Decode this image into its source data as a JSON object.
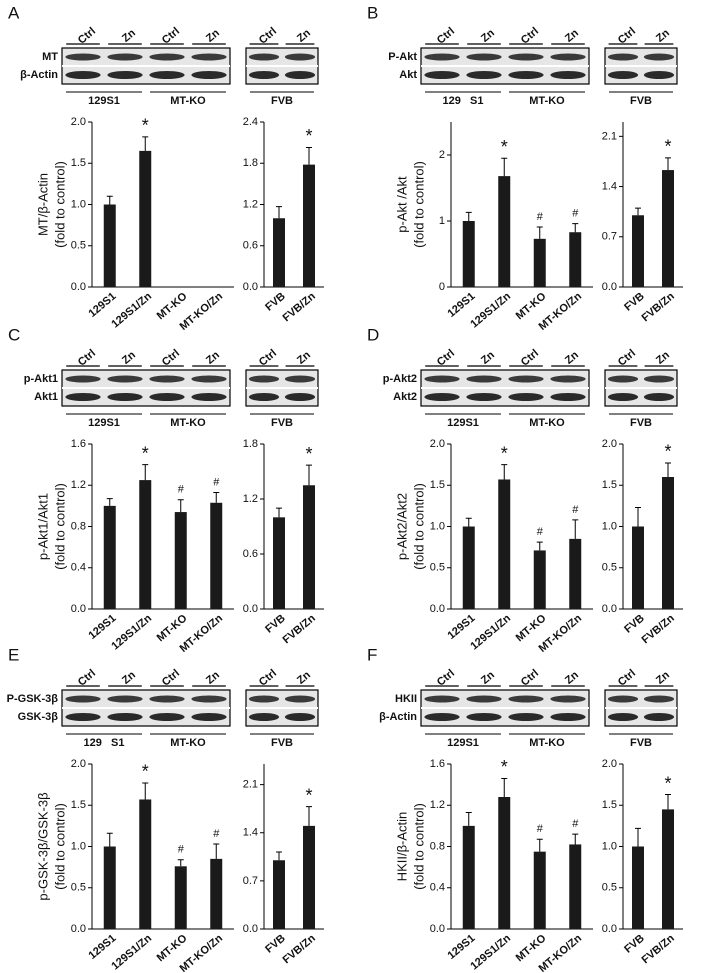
{
  "panels": [
    {
      "letter": "A",
      "blot_left": {
        "lanes": [
          "Ctrl",
          "Zn",
          "Ctrl",
          "Zn"
        ],
        "rows": [
          "MT",
          "β-Actin"
        ],
        "groups": [
          "129S1",
          "MT-KO"
        ]
      },
      "blot_right": {
        "lanes": [
          "Ctrl",
          "Zn"
        ],
        "groups": [
          "FVB"
        ]
      }
    },
    {
      "letter": "B",
      "blot_left": {
        "lanes": [
          "Ctrl",
          "Zn",
          "Ctrl",
          "Zn"
        ],
        "rows": [
          "P-Akt",
          "Akt"
        ],
        "groups": [
          "129   S1",
          "MT-KO"
        ]
      },
      "blot_right": {
        "lanes": [
          "Ctrl",
          "Zn"
        ],
        "groups": [
          "FVB"
        ]
      }
    },
    {
      "letter": "C",
      "blot_left": {
        "lanes": [
          "Ctrl",
          "Zn",
          "Ctrl",
          "Zn"
        ],
        "rows": [
          "p-Akt1",
          "Akt1"
        ],
        "groups": [
          "129S1",
          "MT-KO"
        ]
      },
      "blot_right": {
        "lanes": [
          "Ctrl",
          "Zn"
        ],
        "groups": [
          "FVB"
        ]
      }
    },
    {
      "letter": "D",
      "blot_left": {
        "lanes": [
          "Ctrl",
          "Zn",
          "Ctrl",
          "Zn"
        ],
        "rows": [
          "p-Akt2",
          "Akt2"
        ],
        "groups": [
          "129S1",
          "MT-KO"
        ]
      },
      "blot_right": {
        "lanes": [
          "Ctrl",
          "Zn"
        ],
        "groups": [
          "FVB"
        ]
      }
    },
    {
      "letter": "E",
      "blot_left": {
        "lanes": [
          "Ctrl",
          "Zn",
          "Ctrl",
          "Zn"
        ],
        "rows": [
          "P-GSK-3β",
          "GSK-3β"
        ],
        "groups": [
          "129   S1",
          "MT-KO"
        ]
      },
      "blot_right": {
        "lanes": [
          "Ctrl",
          "Zn"
        ],
        "groups": [
          "FVB"
        ]
      }
    },
    {
      "letter": "F",
      "blot_left": {
        "lanes": [
          "Ctrl",
          "Zn",
          "Ctrl",
          "Zn"
        ],
        "rows": [
          "HKII",
          "β-Actin"
        ],
        "groups": [
          "129S1",
          "MT-KO"
        ]
      },
      "blot_right": {
        "lanes": [
          "Ctrl",
          "Zn"
        ],
        "groups": [
          "FVB"
        ]
      }
    }
  ],
  "chart_data": [
    {
      "type": "bar",
      "ylabel": [
        "MT/β-Actin",
        "(fold to control)"
      ],
      "categories": [
        "129S1",
        "129S1/Zn",
        "MT-KO",
        "MT-KO/Zn"
      ],
      "values": [
        1.0,
        1.65,
        0,
        0
      ],
      "errors": [
        0.1,
        0.17,
        0,
        0
      ],
      "markers": [
        null,
        "*",
        null,
        null
      ],
      "color": "#1a1a1a",
      "ylim": [
        0,
        2.0
      ],
      "yticks": [
        {
          "value": 0,
          "label": "0.0"
        },
        {
          "value": 0.5,
          "label": "0.5"
        },
        {
          "value": 1,
          "label": "1.0"
        },
        {
          "value": 1.5,
          "label": "1.5"
        },
        {
          "value": 2,
          "label": "2.0"
        }
      ]
    },
    {
      "type": "bar",
      "categories": [
        "FVB",
        "FVB/Zn"
      ],
      "values": [
        1.0,
        1.78
      ],
      "errors": [
        0.17,
        0.25
      ],
      "markers": [
        null,
        "*"
      ],
      "color": "#1a1a1a",
      "ylim": [
        0,
        2.4
      ],
      "yticks": [
        {
          "value": 0,
          "label": "0.0"
        },
        {
          "value": 0.6,
          "label": "0.6"
        },
        {
          "value": 1.2,
          "label": "1.2"
        },
        {
          "value": 1.8,
          "label": "1.8"
        },
        {
          "value": 2.4,
          "label": "2.4"
        }
      ]
    },
    {
      "type": "bar",
      "ylabel": [
        "p-Akt /Akt",
        "(fold to control)"
      ],
      "categories": [
        "129S1",
        "129S1/Zn",
        "MT-KO",
        "MT-KO/Zn"
      ],
      "values": [
        1.0,
        1.68,
        0.73,
        0.83
      ],
      "errors": [
        0.13,
        0.27,
        0.18,
        0.13
      ],
      "markers": [
        null,
        "*",
        "#",
        "#"
      ],
      "color": "#1a1a1a",
      "ylim": [
        0,
        2.5
      ],
      "yticks": [
        0,
        1,
        2
      ]
    },
    {
      "type": "bar",
      "categories": [
        "FVB",
        "FVB/Zn"
      ],
      "values": [
        1.0,
        1.63
      ],
      "errors": [
        0.1,
        0.17
      ],
      "markers": [
        null,
        "*"
      ],
      "color": "#1a1a1a",
      "ylim": [
        0,
        2.3
      ],
      "yticks": [
        {
          "value": 0,
          "label": "0.0"
        },
        {
          "value": 0.7,
          "label": "0.7"
        },
        {
          "value": 1.4,
          "label": "1.4"
        },
        {
          "value": 2.1,
          "label": "2.1"
        }
      ]
    },
    {
      "type": "bar",
      "ylabel": [
        "p-Akt1/Akt1",
        "(fold to control)"
      ],
      "categories": [
        "129S1",
        "129S1/Zn",
        "MT-KO",
        "MT-KO/Zn"
      ],
      "values": [
        1.0,
        1.25,
        0.94,
        1.03
      ],
      "errors": [
        0.07,
        0.15,
        0.12,
        0.1
      ],
      "markers": [
        null,
        "*",
        "#",
        "#"
      ],
      "color": "#1a1a1a",
      "ylim": [
        0,
        1.6
      ],
      "yticks": [
        {
          "value": 0,
          "label": "0.0"
        },
        {
          "value": 0.4,
          "label": "0.4"
        },
        {
          "value": 0.8,
          "label": "0.8"
        },
        {
          "value": 1.2,
          "label": "1.2"
        },
        {
          "value": 1.6,
          "label": "1.6"
        }
      ]
    },
    {
      "type": "bar",
      "categories": [
        "FVB",
        "FVB/Zn"
      ],
      "values": [
        1.0,
        1.35
      ],
      "errors": [
        0.1,
        0.22
      ],
      "markers": [
        null,
        "*"
      ],
      "color": "#1a1a1a",
      "ylim": [
        0,
        1.8
      ],
      "yticks": [
        {
          "value": 0,
          "label": "0.0"
        },
        {
          "value": 0.6,
          "label": "0.6"
        },
        {
          "value": 1.2,
          "label": "1.2"
        },
        {
          "value": 1.8,
          "label": "1.8"
        }
      ]
    },
    {
      "type": "bar",
      "ylabel": [
        "p-Akt2/Akt2",
        "(fold to control)"
      ],
      "categories": [
        "129S1",
        "129S1/Zn",
        "MT-KO",
        "MT-KO/Zn"
      ],
      "values": [
        1.0,
        1.57,
        0.71,
        0.85
      ],
      "errors": [
        0.1,
        0.18,
        0.1,
        0.23
      ],
      "markers": [
        null,
        "*",
        "#",
        "#"
      ],
      "color": "#1a1a1a",
      "ylim": [
        0,
        2.0
      ],
      "yticks": [
        {
          "value": 0,
          "label": "0.0"
        },
        {
          "value": 0.5,
          "label": "0.5"
        },
        {
          "value": 1,
          "label": "1.0"
        },
        {
          "value": 1.5,
          "label": "1.5"
        },
        {
          "value": 2,
          "label": "2.0"
        }
      ]
    },
    {
      "type": "bar",
      "categories": [
        "FVB",
        "FVB/Zn"
      ],
      "values": [
        1.0,
        1.6
      ],
      "errors": [
        0.23,
        0.17
      ],
      "markers": [
        null,
        "*"
      ],
      "color": "#1a1a1a",
      "ylim": [
        0,
        2.0
      ],
      "yticks": [
        {
          "value": 0,
          "label": "0.0"
        },
        {
          "value": 0.5,
          "label": "0.5"
        },
        {
          "value": 1,
          "label": "1.0"
        },
        {
          "value": 1.5,
          "label": "1.5"
        },
        {
          "value": 2,
          "label": "2.0"
        }
      ]
    },
    {
      "type": "bar",
      "ylabel": [
        "p-GSK-3β/GSK-3β",
        "(fold to control)"
      ],
      "categories": [
        "129S1",
        "129S1/Zn",
        "MT-KO",
        "MT-KO/Zn"
      ],
      "values": [
        1.0,
        1.57,
        0.76,
        0.85
      ],
      "errors": [
        0.16,
        0.2,
        0.08,
        0.18
      ],
      "markers": [
        null,
        "*",
        "#",
        "#"
      ],
      "color": "#1a1a1a",
      "ylim": [
        0,
        2.0
      ],
      "yticks": [
        {
          "value": 0,
          "label": "0.0"
        },
        {
          "value": 0.5,
          "label": "0.5"
        },
        {
          "value": 1,
          "label": "1.0"
        },
        {
          "value": 1.5,
          "label": "1.5"
        },
        {
          "value": 2,
          "label": "2.0"
        }
      ]
    },
    {
      "type": "bar",
      "categories": [
        "FVB",
        "FVB/Zn"
      ],
      "values": [
        1.0,
        1.5
      ],
      "errors": [
        0.12,
        0.28
      ],
      "markers": [
        null,
        "*"
      ],
      "color": "#1a1a1a",
      "ylim": [
        0,
        2.4
      ],
      "yticks": [
        {
          "value": 0,
          "label": "0.0"
        },
        {
          "value": 0.7,
          "label": "0.7"
        },
        {
          "value": 1.4,
          "label": "1.4"
        },
        {
          "value": 2.1,
          "label": "2.1"
        }
      ]
    },
    {
      "type": "bar",
      "ylabel": [
        "HKII/β-Actin",
        "(fold to control)"
      ],
      "categories": [
        "129S1",
        "129S1/Zn",
        "MT-KO",
        "MT-KO/Zn"
      ],
      "values": [
        1.0,
        1.28,
        0.75,
        0.82
      ],
      "errors": [
        0.13,
        0.18,
        0.12,
        0.1
      ],
      "markers": [
        null,
        "*",
        "#",
        "#"
      ],
      "color": "#1a1a1a",
      "ylim": [
        0,
        1.6
      ],
      "yticks": [
        {
          "value": 0,
          "label": "0.0"
        },
        {
          "value": 0.4,
          "label": "0.4"
        },
        {
          "value": 0.8,
          "label": "0.8"
        },
        {
          "value": 1.2,
          "label": "1.2"
        },
        {
          "value": 1.6,
          "label": "1.6"
        }
      ]
    },
    {
      "type": "bar",
      "categories": [
        "FVB",
        "FVB/Zn"
      ],
      "values": [
        1.0,
        1.45
      ],
      "errors": [
        0.22,
        0.18
      ],
      "markers": [
        null,
        "*"
      ],
      "color": "#1a1a1a",
      "ylim": [
        0,
        2.0
      ],
      "yticks": [
        {
          "value": 0,
          "label": "0.0"
        },
        {
          "value": 0.5,
          "label": "0.5"
        },
        {
          "value": 1,
          "label": "1.0"
        },
        {
          "value": 1.5,
          "label": "1.5"
        },
        {
          "value": 2,
          "label": "2.0"
        }
      ]
    }
  ]
}
